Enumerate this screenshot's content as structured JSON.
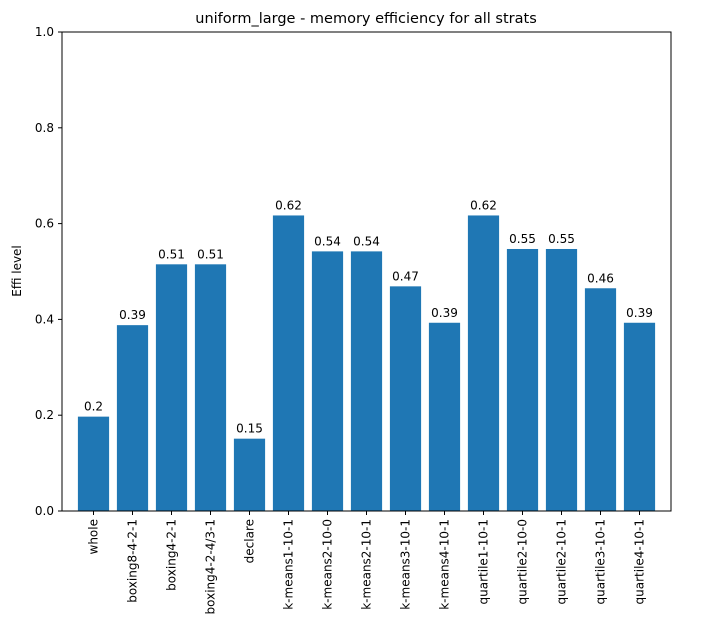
{
  "chart_data": {
    "type": "bar",
    "title": "uniform_large - memory efficiency for all strats",
    "xlabel": "",
    "ylabel": "Effi level",
    "ylim": [
      0,
      1.0
    ],
    "yticks": [
      "0.0",
      "0.2",
      "0.4",
      "0.6",
      "0.8",
      "1.0"
    ],
    "categories": [
      "whole",
      "boxing8-4-2-1",
      "boxing4-2-1",
      "boxing4-2-4/3-1",
      "declare",
      "k-means1-10-1",
      "k-means2-10-0",
      "k-means2-10-1",
      "k-means3-10-1",
      "k-means4-10-1",
      "quartile1-10-1",
      "quartile2-10-0",
      "quartile2-10-1",
      "quartile3-10-1",
      "quartile4-10-1"
    ],
    "values": [
      0.197,
      0.388,
      0.515,
      0.515,
      0.151,
      0.617,
      0.542,
      0.542,
      0.469,
      0.393,
      0.617,
      0.547,
      0.547,
      0.465,
      0.393
    ],
    "value_labels": [
      "0.2",
      "0.39",
      "0.51",
      "0.51",
      "0.15",
      "0.62",
      "0.54",
      "0.54",
      "0.47",
      "0.39",
      "0.62",
      "0.55",
      "0.55",
      "0.46",
      "0.39"
    ],
    "bar_color": "#1f77b4",
    "grid": false
  }
}
